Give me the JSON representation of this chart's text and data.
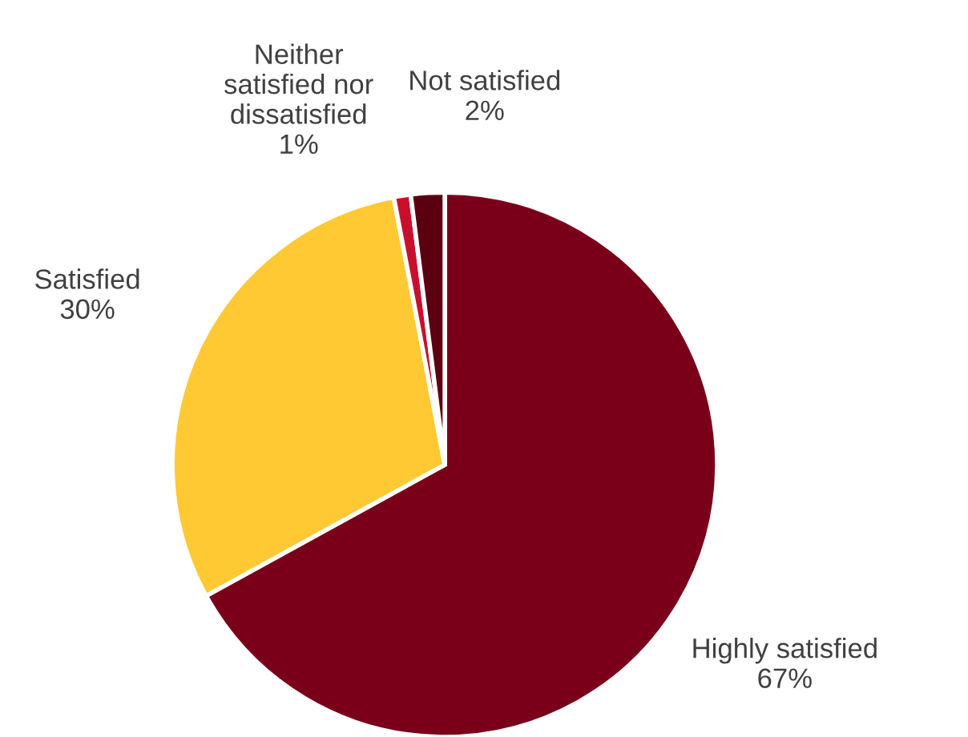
{
  "chart_data": {
    "type": "pie",
    "categories": [
      "Highly satisfied",
      "Satisfied",
      "Neither satisfied nor dissatisfied",
      "Not satisfied"
    ],
    "values": [
      67,
      30,
      1,
      2
    ],
    "colors": [
      "#7a0019",
      "#ffc933",
      "#c8102e",
      "#5a0010"
    ],
    "value_labels": [
      "67%",
      "30%",
      "1%",
      "2%"
    ]
  }
}
